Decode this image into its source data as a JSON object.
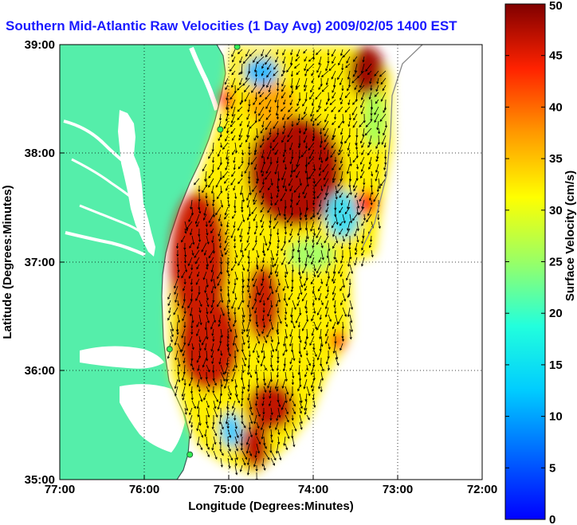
{
  "chart_data": {
    "type": "heatmap",
    "title": "Southern Mid-Atlantic Raw Velocities (1 Day Avg) 2009/02/05 1400 EST",
    "xlabel": "Longitude (Degrees:Minutes)",
    "ylabel": "Latitude (Degrees:Minutes)",
    "x_ticks": [
      "77:00",
      "76:00",
      "75:00",
      "74:00",
      "73:00",
      "72:00"
    ],
    "y_ticks": [
      "39:00",
      "38:00",
      "37:00",
      "36:00",
      "35:00"
    ],
    "xlim": [
      -77,
      -72
    ],
    "ylim": [
      35,
      39
    ],
    "grid": true,
    "colorbar": {
      "label": "Surface Velocity (cm/s)",
      "range": [
        0,
        50
      ],
      "ticks": [
        "0",
        "5",
        "10",
        "15",
        "20",
        "25",
        "30",
        "35",
        "40",
        "45",
        "50"
      ],
      "colormap": "jet"
    },
    "colors": {
      "land": "#55eeaa",
      "water": "#ffffff",
      "coastline": "#3a5a55",
      "arrows": "#000000",
      "title": "#1a1aff",
      "station": "#33ee55"
    },
    "stations": [
      {
        "lon": -74.9,
        "lat": 38.98
      },
      {
        "lon": -75.1,
        "lat": 38.22
      },
      {
        "lon": -75.7,
        "lat": 36.2
      },
      {
        "lon": -75.46,
        "lat": 35.23
      }
    ]
  }
}
